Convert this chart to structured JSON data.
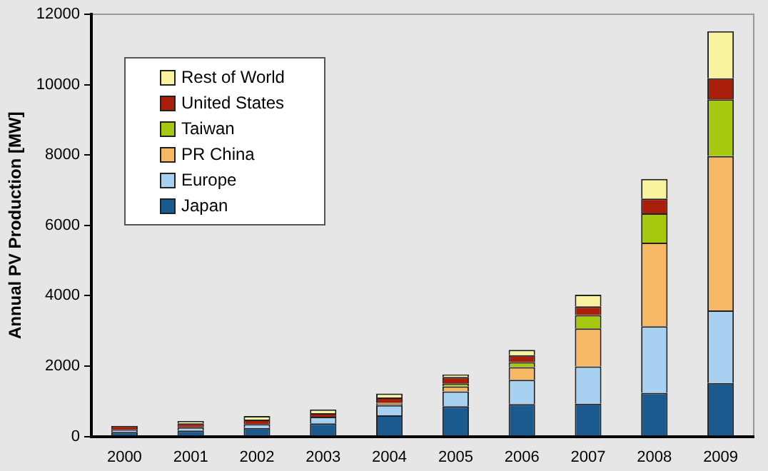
{
  "chart_data": {
    "type": "bar",
    "ylabel": "Annual PV Production [MW]",
    "categories": [
      "2000",
      "2001",
      "2002",
      "2003",
      "2004",
      "2005",
      "2006",
      "2007",
      "2008",
      "2009"
    ],
    "stacked": true,
    "ylim": [
      0,
      12000
    ],
    "yticks": [
      0,
      2000,
      4000,
      6000,
      8000,
      10000,
      12000
    ],
    "grid": false,
    "legend": "top left",
    "series": [
      {
        "name": "Japan",
        "color": "#1a5a8e",
        "values": [
          130,
          170,
          240,
          370,
          600,
          860,
          920,
          930,
          1240,
          1520
        ]
      },
      {
        "name": "Europe",
        "color": "#a8d0f0",
        "values": [
          60,
          90,
          110,
          190,
          290,
          420,
          690,
          1060,
          1890,
          2060
        ]
      },
      {
        "name": "PR China",
        "color": "#f7b866",
        "values": [
          null,
          null,
          null,
          null,
          40,
          140,
          360,
          1080,
          2380,
          4390
        ]
      },
      {
        "name": "Taiwan",
        "color": "#a6c80e",
        "values": [
          null,
          null,
          null,
          null,
          20,
          90,
          140,
          380,
          830,
          1610
        ]
      },
      {
        "name": "United States",
        "color": "#a81e0a",
        "values": [
          110,
          110,
          130,
          100,
          160,
          180,
          200,
          250,
          420,
          600
        ]
      },
      {
        "name": "Rest of World",
        "color": "#f9f3a0",
        "values": [
          null,
          70,
          100,
          110,
          110,
          70,
          150,
          330,
          560,
          1340
        ]
      }
    ]
  }
}
